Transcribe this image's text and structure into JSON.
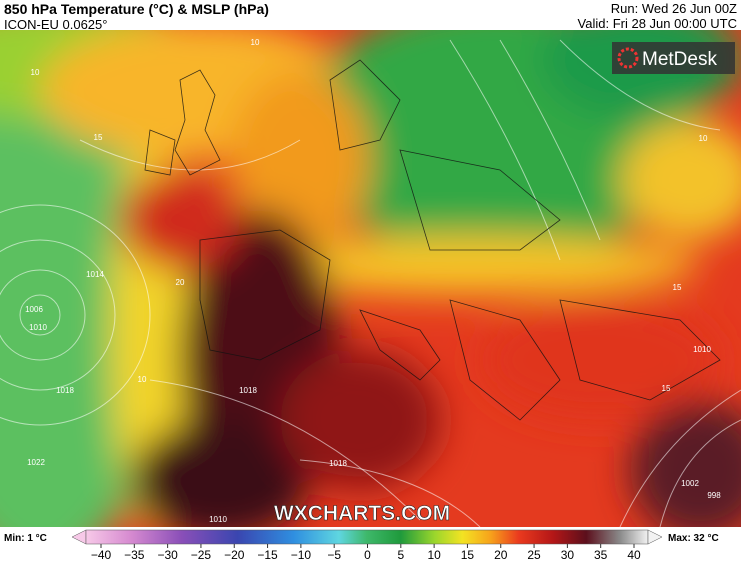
{
  "header": {
    "title": "850 hPa Temperature (°C) & MSLP (hPa)",
    "model": "ICON-EU 0.0625°",
    "run": "Run: Wed 26 Jun 00Z",
    "valid": "Valid: Fri 28 Jun 00:00 UTC"
  },
  "logo": "MetDesk",
  "watermark": "WXCHARTS.COM",
  "map_labels": [
    "10",
    "10",
    "15",
    "20",
    "10",
    "1006",
    "1010",
    "1014",
    "1018",
    "1022",
    "1018",
    "1018",
    "1010",
    "1002",
    "998",
    "15",
    "15",
    "10",
    "1010"
  ],
  "colorbar": {
    "min_label": "Min: 1 °C",
    "max_label": "Max: 32 °C",
    "ticks": [
      "−40",
      "−35",
      "−30",
      "−25",
      "−20",
      "−15",
      "−10",
      "−5",
      "0",
      "5",
      "10",
      "15",
      "20",
      "25",
      "30",
      "35",
      "40"
    ]
  }
}
